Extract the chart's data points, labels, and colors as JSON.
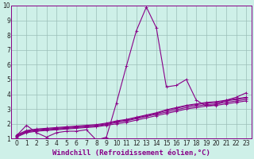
{
  "title": "",
  "xlabel": "Windchill (Refroidissement éolien,°C)",
  "ylabel": "",
  "bg_color": "#cef0e8",
  "grid_color": "#9bbfb8",
  "line_color": "#880088",
  "xlim": [
    -0.5,
    23.5
  ],
  "ylim": [
    1,
    10
  ],
  "xticks": [
    0,
    1,
    2,
    3,
    4,
    5,
    6,
    7,
    8,
    9,
    10,
    11,
    12,
    13,
    14,
    15,
    16,
    17,
    18,
    19,
    20,
    21,
    22,
    23
  ],
  "yticks": [
    1,
    2,
    3,
    4,
    5,
    6,
    7,
    8,
    9,
    10
  ],
  "series_with_markers": [
    [
      1.2,
      1.9,
      1.4,
      1.1,
      1.4,
      1.5,
      1.5,
      1.6,
      0.9,
      1.1,
      3.4,
      5.9,
      8.3,
      9.9,
      8.5,
      4.5,
      4.6,
      5.0,
      3.6,
      3.2,
      3.3,
      3.6,
      3.8,
      4.1
    ]
  ],
  "series_smooth": [
    [
      1.1,
      1.4,
      1.5,
      1.55,
      1.6,
      1.65,
      1.7,
      1.75,
      1.8,
      1.9,
      2.0,
      2.1,
      2.25,
      2.4,
      2.55,
      2.7,
      2.85,
      3.0,
      3.1,
      3.2,
      3.25,
      3.35,
      3.45,
      3.55
    ],
    [
      1.15,
      1.45,
      1.55,
      1.6,
      1.65,
      1.7,
      1.75,
      1.8,
      1.85,
      1.95,
      2.1,
      2.2,
      2.35,
      2.5,
      2.65,
      2.8,
      2.95,
      3.1,
      3.2,
      3.3,
      3.35,
      3.45,
      3.55,
      3.65
    ],
    [
      1.2,
      1.5,
      1.6,
      1.65,
      1.7,
      1.75,
      1.8,
      1.85,
      1.9,
      2.0,
      2.15,
      2.25,
      2.4,
      2.55,
      2.7,
      2.9,
      3.05,
      3.2,
      3.3,
      3.4,
      3.45,
      3.55,
      3.65,
      3.75
    ],
    [
      1.25,
      1.55,
      1.65,
      1.7,
      1.75,
      1.8,
      1.85,
      1.9,
      1.95,
      2.05,
      2.2,
      2.3,
      2.45,
      2.6,
      2.75,
      2.95,
      3.1,
      3.25,
      3.35,
      3.45,
      3.5,
      3.6,
      3.7,
      3.8
    ]
  ],
  "marker": "+",
  "markersize": 3,
  "linewidth": 0.8,
  "xlabel_fontsize": 6.5,
  "tick_fontsize": 5.5
}
